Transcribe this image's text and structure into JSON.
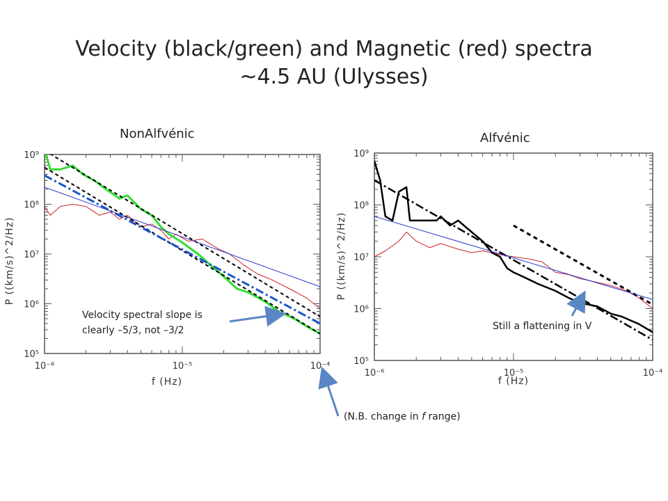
{
  "title_line1": "Velocity (black/green) and Magnetic (red) spectra",
  "title_line2": "~4.5 AU (Ulysses)",
  "left_subtitle": "NonAlfvénic",
  "right_subtitle": "Alfvénic",
  "note_left_line1": "Velocity spectral slope is",
  "note_left_line2": "clearly –5/3, not –3/2",
  "note_right": "Still a flattening in V",
  "note_bottom_prefix": "(N.B. change in ",
  "note_bottom_f": "f",
  "note_bottom_suffix": " range)",
  "colors": {
    "velocity_black": "#000000",
    "velocity_green": "#33dd33",
    "magnetic": "#cc2222",
    "fit_blue": "#2233cc",
    "fit_blue_dash": "#1a55cc",
    "arrow": "#5b86c5"
  },
  "chart_data": [
    {
      "type": "line",
      "panel": "left",
      "xlabel": "f (Hz)",
      "ylabel": "P ((km/s)^2/Hz)",
      "x_scale": "log",
      "y_scale": "log",
      "xlim": [
        1e-06,
        0.0001
      ],
      "ylim": [
        100000.0,
        1000000000.0
      ],
      "xticks": [
        {
          "v": 1e-06,
          "label": "10⁻⁶"
        },
        {
          "v": 1e-05,
          "label": "10⁻⁵"
        },
        {
          "v": 0.0001,
          "label": "10⁻⁴"
        }
      ],
      "yticks": [
        {
          "v": 100000.0,
          "label": "10⁵"
        },
        {
          "v": 1000000.0,
          "label": "10⁶"
        },
        {
          "v": 10000000.0,
          "label": "10⁷"
        },
        {
          "v": 100000000.0,
          "label": "10⁸"
        },
        {
          "v": 1000000000.0,
          "label": "10⁹"
        }
      ],
      "series": [
        {
          "style": "magnetic",
          "values": [
            [
              1e-06,
              90000000.0
            ],
            [
              1.1e-06,
              60000000.0
            ],
            [
              1.3e-06,
              90000000.0
            ],
            [
              1.6e-06,
              100000000.0
            ],
            [
              2e-06,
              90000000.0
            ],
            [
              2.5e-06,
              60000000.0
            ],
            [
              3e-06,
              70000000.0
            ],
            [
              3.5e-06,
              50000000.0
            ],
            [
              4e-06,
              60000000.0
            ],
            [
              5e-06,
              35000000.0
            ],
            [
              6e-06,
              40000000.0
            ],
            [
              7e-06,
              30000000.0
            ],
            [
              8e-06,
              20000000.0
            ],
            [
              9e-06,
              25000000.0
            ],
            [
              1.1e-05,
              18000000.0
            ],
            [
              1.4e-05,
              20000000.0
            ],
            [
              1.8e-05,
              13000000.0
            ],
            [
              2.2e-05,
              10000000.0
            ],
            [
              2.8e-05,
              6000000.0
            ],
            [
              3.5e-05,
              4000000.0
            ],
            [
              4.5e-05,
              3000000.0
            ],
            [
              6e-05,
              2000000.0
            ],
            [
              8e-05,
              1300000.0
            ],
            [
              0.0001,
              800000.0
            ]
          ]
        },
        {
          "style": "velocity_green",
          "values": [
            [
              1e-06,
              1300000000.0
            ],
            [
              1.1e-06,
              500000000.0
            ],
            [
              1.3e-06,
              500000000.0
            ],
            [
              1.6e-06,
              600000000.0
            ],
            [
              1.9e-06,
              400000000.0
            ],
            [
              2.3e-06,
              300000000.0
            ],
            [
              2.8e-06,
              200000000.0
            ],
            [
              3.5e-06,
              130000000.0
            ],
            [
              4e-06,
              150000000.0
            ],
            [
              5e-06,
              80000000.0
            ],
            [
              6e-06,
              60000000.0
            ],
            [
              7e-06,
              35000000.0
            ],
            [
              8e-06,
              25000000.0
            ],
            [
              1e-05,
              17000000.0
            ],
            [
              1.3e-05,
              10000000.0
            ],
            [
              1.6e-05,
              6000000.0
            ],
            [
              2e-05,
              3500000.0
            ],
            [
              2.5e-05,
              2000000.0
            ],
            [
              3e-05,
              1700000.0
            ],
            [
              4e-05,
              1100000.0
            ],
            [
              5e-05,
              700000.0
            ],
            [
              6.5e-05,
              500000.0
            ],
            [
              8e-05,
              350000.0
            ],
            [
              0.0001,
              250000.0
            ]
          ]
        },
        {
          "style": "fit_black_dash",
          "values": [
            [
              1e-06,
              1200000000.0
            ],
            [
              0.0001,
              550000.0
            ]
          ]
        },
        {
          "style": "fit_black_dash",
          "values": [
            [
              1e-06,
              550000000.0
            ],
            [
              0.0001,
              250000.0
            ]
          ]
        },
        {
          "style": "fit_blue_dashdot",
          "values": [
            [
              1e-06,
              380000000.0
            ],
            [
              0.0001,
              400000.0
            ]
          ]
        },
        {
          "style": "fit_blue_thin",
          "values": [
            [
              1e-06,
              220000000.0
            ],
            [
              0.0001,
              2200000.0
            ]
          ]
        }
      ]
    },
    {
      "type": "line",
      "panel": "right",
      "xlabel": "f (Hz)",
      "ylabel": "P ((km/s)^2/Hz)",
      "x_scale": "log",
      "y_scale": "log",
      "xlim": [
        1e-06,
        0.0001
      ],
      "ylim": [
        100000.0,
        1000000000.0
      ],
      "xticks": [
        {
          "v": 1e-06,
          "label": "10⁻⁶"
        },
        {
          "v": 1e-05,
          "label": "10⁻⁵"
        },
        {
          "v": 0.0001,
          "label": "10⁻⁴"
        }
      ],
      "yticks": [
        {
          "v": 100000.0,
          "label": "10⁵"
        },
        {
          "v": 1000000.0,
          "label": "10⁶"
        },
        {
          "v": 10000000.0,
          "label": "10⁷"
        },
        {
          "v": 100000000.0,
          "label": "10⁸"
        },
        {
          "v": 1000000000.0,
          "label": "10⁹"
        }
      ],
      "series": [
        {
          "style": "magnetic",
          "values": [
            [
              1e-06,
              10000000.0
            ],
            [
              1.2e-06,
              13000000.0
            ],
            [
              1.5e-06,
              20000000.0
            ],
            [
              1.7e-06,
              30000000.0
            ],
            [
              2e-06,
              20000000.0
            ],
            [
              2.5e-06,
              15000000.0
            ],
            [
              3e-06,
              18000000.0
            ],
            [
              4e-06,
              14000000.0
            ],
            [
              5e-06,
              12000000.0
            ],
            [
              6e-06,
              13000000.0
            ],
            [
              8e-06,
              11000000.0
            ],
            [
              1e-05,
              10000000.0
            ],
            [
              1.3e-05,
              9000000.0
            ],
            [
              1.6e-05,
              8000000.0
            ],
            [
              2e-05,
              5000000.0
            ],
            [
              2.5e-05,
              4500000.0
            ],
            [
              3e-05,
              3800000.0
            ],
            [
              4e-05,
              3200000.0
            ],
            [
              5e-05,
              2800000.0
            ],
            [
              6.5e-05,
              2200000.0
            ],
            [
              8e-05,
              1600000.0
            ],
            [
              0.0001,
              1000000.0
            ]
          ]
        },
        {
          "style": "velocity_black",
          "values": [
            [
              1e-06,
              700000000.0
            ],
            [
              1.1e-06,
              300000000.0
            ],
            [
              1.2e-06,
              60000000.0
            ],
            [
              1.35e-06,
              50000000.0
            ],
            [
              1.5e-06,
              180000000.0
            ],
            [
              1.7e-06,
              220000000.0
            ],
            [
              1.8e-06,
              50000000.0
            ],
            [
              2.2e-06,
              50000000.0
            ],
            [
              2.8e-06,
              50000000.0
            ],
            [
              3e-06,
              60000000.0
            ],
            [
              3.5e-06,
              40000000.0
            ],
            [
              4e-06,
              50000000.0
            ],
            [
              5e-06,
              30000000.0
            ],
            [
              6e-06,
              20000000.0
            ],
            [
              7e-06,
              12000000.0
            ],
            [
              8e-06,
              10000000.0
            ],
            [
              9e-06,
              6000000.0
            ],
            [
              1e-05,
              5000000.0
            ],
            [
              1.2e-05,
              4000000.0
            ],
            [
              1.5e-05,
              3000000.0
            ],
            [
              2e-05,
              2200000.0
            ],
            [
              2.5e-05,
              1600000.0
            ],
            [
              3e-05,
              1300000.0
            ],
            [
              4e-05,
              1100000.0
            ],
            [
              5e-05,
              800000.0
            ],
            [
              6e-05,
              700000.0
            ],
            [
              8e-05,
              500000.0
            ],
            [
              0.0001,
              350000.0
            ]
          ]
        },
        {
          "style": "fit_black_dashdot",
          "values": [
            [
              1e-06,
              300000000.0
            ],
            [
              0.0001,
              250000.0
            ]
          ]
        },
        {
          "style": "fit_black_dash_short",
          "values": [
            [
              1e-05,
              40000000.0
            ],
            [
              0.0001,
              1200000.0
            ]
          ]
        },
        {
          "style": "fit_blue_thin",
          "values": [
            [
              1e-06,
              60000000.0
            ],
            [
              0.0001,
              1500000.0
            ]
          ]
        }
      ]
    }
  ]
}
